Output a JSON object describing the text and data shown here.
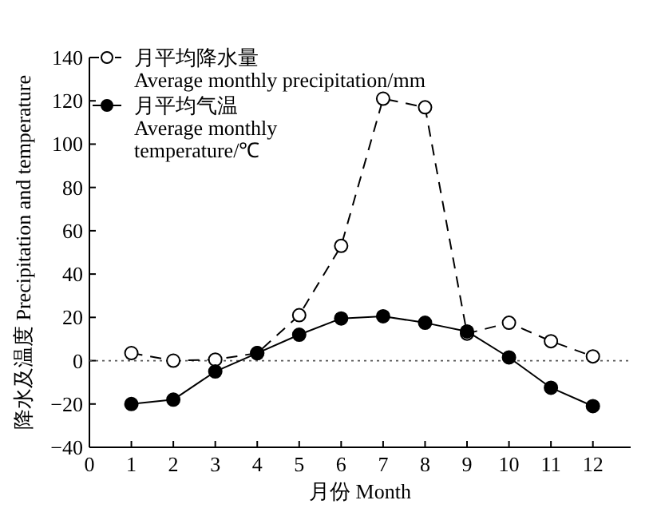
{
  "chart_data": {
    "type": "line",
    "xlabel": "月份 Month",
    "ylabel": "降水及温度 Precipitation and temperature",
    "x": [
      1,
      2,
      3,
      4,
      5,
      6,
      7,
      8,
      9,
      10,
      11,
      12
    ],
    "series": [
      {
        "name": "月平均降水量\nAverage monthly precipitation/mm",
        "color": "#000000",
        "line_style": "dashed",
        "values": [
          3.5,
          0,
          0.5,
          3.5,
          21,
          53,
          121,
          117,
          12.5,
          17.5,
          9,
          2
        ]
      },
      {
        "name": "月平均气温\nAverage monthly\ntemperature/℃",
        "color": "#000000",
        "line_style": "solid",
        "values": [
          -20,
          -18,
          -5,
          3.5,
          12,
          19.5,
          20.5,
          17.5,
          13.5,
          1.5,
          -12.5,
          -21
        ]
      }
    ],
    "xlim": [
      0,
      12.9
    ],
    "xticks": [
      0,
      1,
      2,
      3,
      4,
      5,
      6,
      7,
      8,
      9,
      10,
      11,
      12
    ],
    "ylim": [
      -40,
      140
    ],
    "yticks": [
      -40,
      -20,
      0,
      20,
      40,
      60,
      80,
      100,
      120,
      140
    ],
    "ref_lines": [
      {
        "axis": "y",
        "value": 0,
        "line_style": "dotted",
        "color": "#555555"
      }
    ],
    "marker": "circle",
    "legend": "top left",
    "grid": false
  }
}
